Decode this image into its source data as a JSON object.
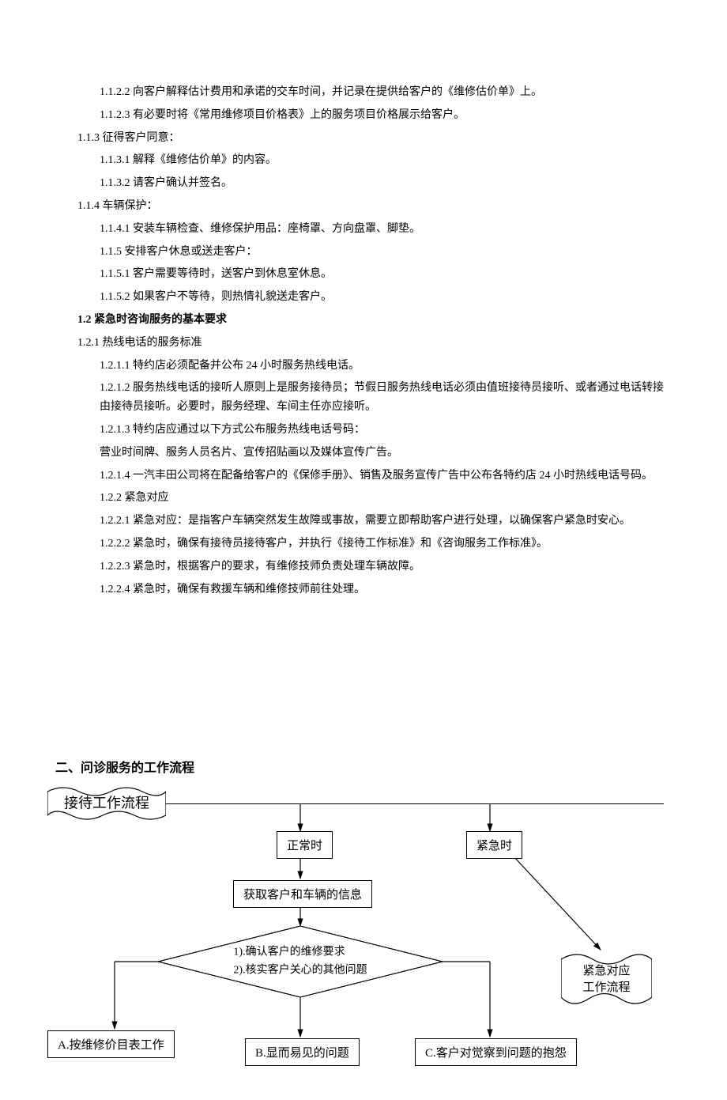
{
  "text_lines": [
    {
      "cls": "indent-2",
      "t": "1.1.2.2 向客户解释估计费用和承诺的交车时间，并记录在提供给客户的《维修估价单》上。"
    },
    {
      "cls": "indent-2",
      "t": "1.1.2.3 有必要时将《常用维修项目价格表》上的服务项目价格展示给客户。"
    },
    {
      "cls": "indent-1",
      "t": "1.1.3 征得客户同意："
    },
    {
      "cls": "indent-2",
      "t": "1.1.3.1 解释《维修估价单》的内容。"
    },
    {
      "cls": "indent-2",
      "t": "1.1.3.2 请客户确认并签名。"
    },
    {
      "cls": "indent-1",
      "t": "1.1.4 车辆保护："
    },
    {
      "cls": "indent-2",
      "t": "1.1.4.1 安装车辆检查、维修保护用品：座椅罩、方向盘罩、脚垫。"
    },
    {
      "cls": "indent-2",
      "t": "1.1.5 安排客户休息或送走客户："
    },
    {
      "cls": "indent-2",
      "t": "1.1.5.1 客户需要等待时，送客户到休息室休息。"
    },
    {
      "cls": "indent-2",
      "t": "1.1.5.2 如果客户不等待，则热情礼貌送走客户。"
    },
    {
      "cls": "indent-1 bold",
      "t": "1.2 紧急时咨询服务的基本要求"
    },
    {
      "cls": "indent-1",
      "t": "1.2.1 热线电话的服务标准"
    },
    {
      "cls": "indent-2",
      "t": "1.2.1.1 特约店必须配备并公布 24 小时服务热线电话。"
    },
    {
      "cls": "indent-2",
      "t": "1.2.1.2 服务热线电话的接听人原则上是服务接待员；节假日服务热线电话必须由值班接待员接听、或者通过电话转接由接待员接听。必要时，服务经理、车间主任亦应接听。"
    },
    {
      "cls": "indent-2",
      "t": "1.2.1.3 特约店应通过以下方式公布服务热线电话号码："
    },
    {
      "cls": "indent-2",
      "t": "营业时间牌、服务人员名片、宣传招贴画以及媒体宣传广告。"
    },
    {
      "cls": "indent-2",
      "t": "1.2.1.4 一汽丰田公司将在配备给客户的《保修手册》、销售及服务宣传广告中公布各特约店 24 小时热线电话号码。"
    },
    {
      "cls": "indent-2",
      "t": "1.2.2 紧急对应"
    },
    {
      "cls": "indent-3",
      "t": "1.2.2.1 紧急对应：是指客户车辆突然发生故障或事故，需要立即帮助客户进行处理，以确保客户紧急时安心。"
    },
    {
      "cls": "indent-3",
      "t": "1.2.2.2 紧急时，确保有接待员接待客户，并执行《接待工作标准》和《咨询服务工作标准》。"
    },
    {
      "cls": "indent-3",
      "t": "1.2.2.3 紧急时，根据客户的要求，有维修技师负责处理车辆故障。"
    },
    {
      "cls": "indent-3",
      "t": "1.2.2.4 紧急时，确保有救援车辆和维修技师前往处理。"
    }
  ],
  "section2_title": "二、问诊服务的工作流程",
  "flow": {
    "ribbon1": "接待工作流程",
    "ribbon2_l1": "紧急对应",
    "ribbon2_l2": "工作流程",
    "box_normal": "正常时",
    "box_emergency": "紧急时",
    "box_info": "获取客户和车辆的信息",
    "diamond_l1": "1).确认客户的维修要求",
    "diamond_l2": "2).核实客户关心的其他问题",
    "box_a": "A.按维修价目表工作",
    "box_b": "B.显而易见的问题",
    "box_c": "C.客户对觉察到问题的抱怨",
    "colors": {
      "stroke": "#000000",
      "fill": "#ffffff"
    }
  }
}
